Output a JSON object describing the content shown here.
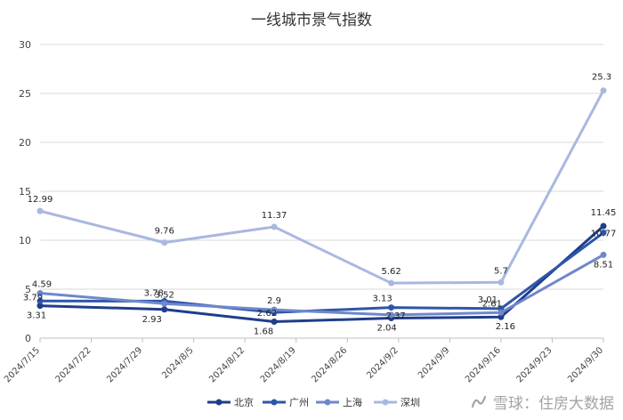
{
  "chart_data": {
    "type": "line",
    "title": "一线城市景气指数",
    "xlabel": "",
    "ylabel": "",
    "ylim": [
      0,
      30
    ],
    "yticks": [
      "0",
      "5",
      "10",
      "15",
      "20",
      "25",
      "30"
    ],
    "x_ticks": [
      "2024/7/15",
      "2024/7/22",
      "2024/7/29",
      "2024/8/5",
      "2024/8/12",
      "2024/8/19",
      "2024/8/26",
      "2024/9/2",
      "2024/9/9",
      "2024/9/16",
      "2024/9/23",
      "2024/9/30"
    ],
    "grid": true,
    "legend_position": "bottom",
    "series": [
      {
        "name": "北京",
        "color": "#1f3d8a",
        "points": [
          [
            "2024/7/15",
            3.31
          ],
          [
            "2024/8/1",
            2.93
          ],
          [
            "2024/8/16",
            1.68
          ],
          [
            "2024/9/1",
            2.04
          ],
          [
            "2024/9/16",
            2.16
          ],
          [
            "2024/9/30",
            11.45
          ]
        ],
        "labels": [
          "3.31",
          "2.93",
          "1.68",
          "2.04",
          "2.16",
          "11.45"
        ]
      },
      {
        "name": "广州",
        "color": "#2e56a8",
        "points": [
          [
            "2024/7/15",
            3.79
          ],
          [
            "2024/8/1",
            3.78
          ],
          [
            "2024/8/16",
            2.62
          ],
          [
            "2024/9/1",
            3.13
          ],
          [
            "2024/9/16",
            3.01
          ],
          [
            "2024/9/30",
            10.77
          ]
        ],
        "labels": [
          "3.79",
          "3.78",
          "2.62",
          "3.13",
          "3.01",
          "10.77"
        ]
      },
      {
        "name": "上海",
        "color": "#6f88cc",
        "points": [
          [
            "2024/7/15",
            4.59
          ],
          [
            "2024/8/1",
            3.52
          ],
          [
            "2024/8/16",
            2.9
          ],
          [
            "2024/9/1",
            2.37
          ],
          [
            "2024/9/16",
            2.61
          ],
          [
            "2024/9/30",
            8.51
          ]
        ],
        "labels": [
          "4.59",
          "3.52",
          "2.9",
          "2.37",
          "2.61",
          "8.51"
        ]
      },
      {
        "name": "深圳",
        "color": "#a9b8e0",
        "points": [
          [
            "2024/7/15",
            12.99
          ],
          [
            "2024/8/1",
            9.76
          ],
          [
            "2024/8/16",
            11.37
          ],
          [
            "2024/9/1",
            5.62
          ],
          [
            "2024/9/16",
            5.7
          ],
          [
            "2024/9/30",
            25.3
          ]
        ],
        "labels": [
          "12.99",
          "9.76",
          "11.37",
          "5.62",
          "5.7",
          "25.3"
        ]
      }
    ]
  },
  "watermark": {
    "text": "雪球：住房大数据"
  }
}
